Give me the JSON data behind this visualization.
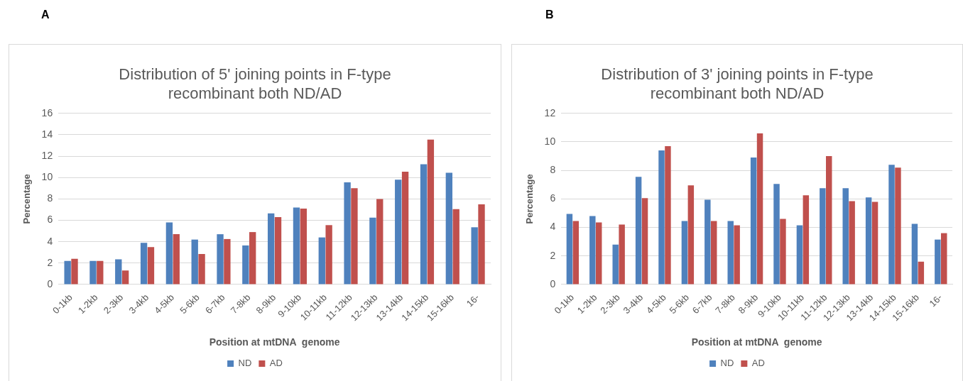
{
  "chart_data": [
    {
      "type": "bar",
      "annotations": [
        "A"
      ],
      "title": [
        "Distribution of 5' joining points in F-type",
        "recombinant both ND/AD"
      ],
      "xlabel": "Position at mtDNA  genome",
      "ylabel": "Percentage",
      "categories": [
        "0-1kb",
        "1-2kb",
        "2-3kb",
        "3-4kb",
        "4-5kb",
        "5-6kb",
        "6-7kb",
        "7-8kb",
        "8-9kb",
        "9-10kb",
        "10-11kb",
        "11-12kb",
        "12-13kb",
        "13-14kb",
        "14-15kb",
        "15-16kb",
        "16-"
      ],
      "series": [
        {
          "name": "ND",
          "color": "#4f81bd",
          "values": [
            2.2,
            2.2,
            2.35,
            3.9,
            5.8,
            4.2,
            4.7,
            3.65,
            6.65,
            7.2,
            4.4,
            9.55,
            6.25,
            9.8,
            11.25,
            10.45,
            5.35
          ]
        },
        {
          "name": "AD",
          "color": "#c0504d",
          "values": [
            2.4,
            2.2,
            1.3,
            3.5,
            4.7,
            2.85,
            4.25,
            4.9,
            6.3,
            7.1,
            5.55,
            9.0,
            8.0,
            10.55,
            13.55,
            7.05,
            7.5
          ]
        }
      ],
      "ylim": [
        0,
        16
      ],
      "yticks": [
        0,
        2,
        4,
        6,
        8,
        10,
        12,
        14,
        16
      ],
      "grid": "y",
      "legend": "bottom"
    },
    {
      "type": "bar",
      "annotations": [
        "B"
      ],
      "title": [
        "Distribution of 3' joining points in F-type",
        "recombinant both ND/AD"
      ],
      "xlabel": "Position at mtDNA  genome",
      "ylabel": "Percentage",
      "categories": [
        "0-1kb",
        "1-2kb",
        "2-3kb",
        "3-4kb",
        "4-5kb",
        "5-6kb",
        "6-7kb",
        "7-8kb",
        "8-9kb",
        "9-10kb",
        "10-11kb",
        "11-12kb",
        "12-13kb",
        "13-14kb",
        "14-15kb",
        "15-16kb",
        "16-"
      ],
      "series": [
        {
          "name": "ND",
          "color": "#4f81bd",
          "values": [
            4.95,
            4.8,
            2.8,
            7.55,
            9.4,
            4.45,
            5.95,
            4.45,
            8.9,
            7.05,
            4.15,
            6.75,
            6.75,
            6.1,
            8.4,
            4.25,
            3.15
          ]
        },
        {
          "name": "AD",
          "color": "#c0504d",
          "values": [
            4.45,
            4.35,
            4.2,
            6.05,
            9.7,
            6.95,
            4.45,
            4.15,
            10.6,
            4.6,
            6.25,
            9.0,
            5.85,
            5.8,
            8.2,
            1.6,
            3.6
          ]
        }
      ],
      "ylim": [
        0,
        12
      ],
      "yticks": [
        0,
        2,
        4,
        6,
        8,
        10,
        12
      ],
      "grid": "y",
      "legend": "bottom"
    }
  ]
}
